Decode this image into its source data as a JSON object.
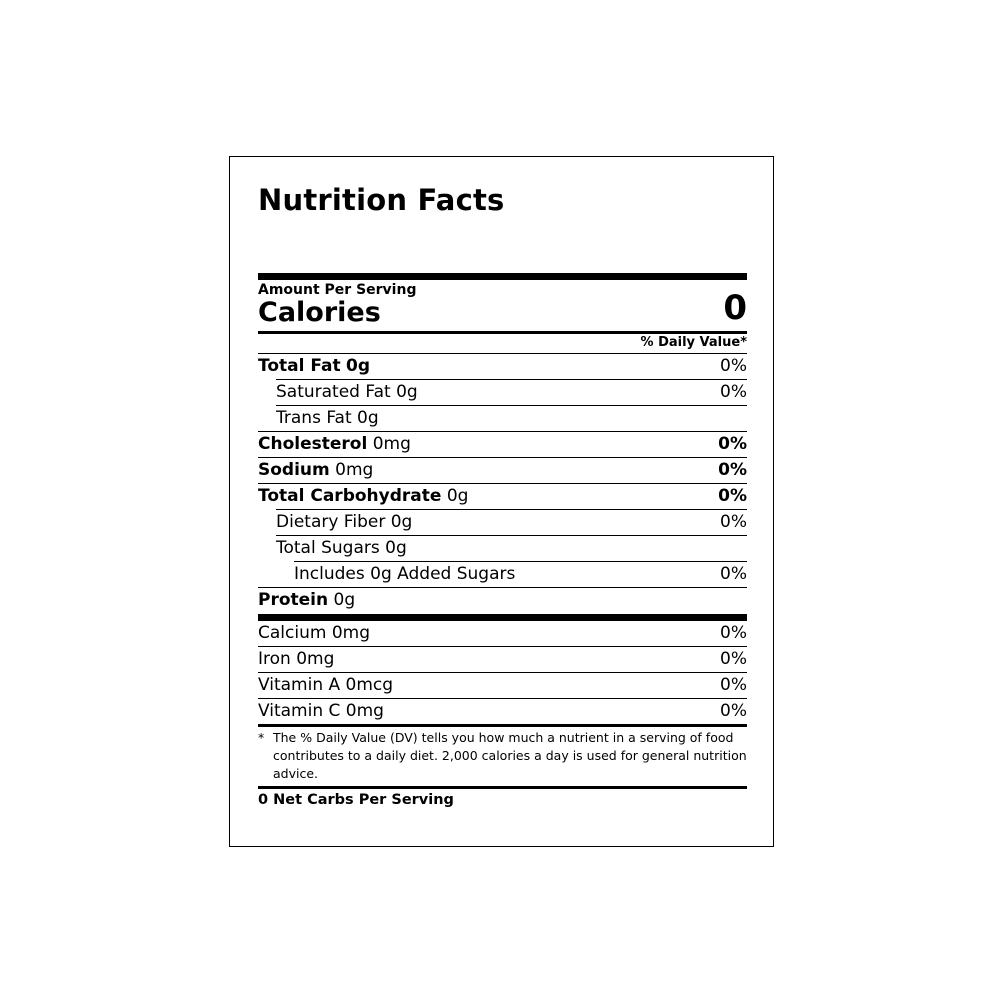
{
  "title": "Nutrition Facts",
  "amount_per_serving": "Amount Per Serving",
  "calories_label": "Calories",
  "calories_value": "0",
  "daily_value_header": "% Daily Value*",
  "nutrients": [
    {
      "name": "Total Fat",
      "amount": "0g",
      "dv": "0%",
      "name_bold": true,
      "amount_bold": true,
      "dv_bold": false,
      "indent": 0
    },
    {
      "name": "Saturated Fat",
      "amount": "0g",
      "dv": "0%",
      "name_bold": false,
      "amount_bold": false,
      "dv_bold": false,
      "indent": 1
    },
    {
      "name": "Trans Fat",
      "amount": "0g",
      "dv": "",
      "name_bold": false,
      "amount_bold": false,
      "dv_bold": false,
      "indent": 1
    },
    {
      "name": "Cholesterol",
      "amount": "0mg",
      "dv": "0%",
      "name_bold": true,
      "amount_bold": false,
      "dv_bold": true,
      "indent": 0
    },
    {
      "name": "Sodium",
      "amount": "0mg",
      "dv": "0%",
      "name_bold": true,
      "amount_bold": false,
      "dv_bold": true,
      "indent": 0
    },
    {
      "name": "Total Carbohydrate",
      "amount": "0g",
      "dv": "0%",
      "name_bold": true,
      "amount_bold": false,
      "dv_bold": true,
      "indent": 0
    },
    {
      "name": "Dietary Fiber",
      "amount": "0g",
      "dv": "0%",
      "name_bold": false,
      "amount_bold": false,
      "dv_bold": false,
      "indent": 1
    },
    {
      "name": "Total Sugars",
      "amount": "0g",
      "dv": "",
      "name_bold": false,
      "amount_bold": false,
      "dv_bold": false,
      "indent": 1
    },
    {
      "name": "Includes 0g Added Sugars",
      "amount": "",
      "dv": "0%",
      "name_bold": false,
      "amount_bold": false,
      "dv_bold": false,
      "indent": 2
    },
    {
      "name": "Protein",
      "amount": "0g",
      "dv": "",
      "name_bold": true,
      "amount_bold": false,
      "dv_bold": false,
      "indent": 0
    }
  ],
  "vitamins": [
    {
      "name": "Calcium 0mg",
      "dv": "0%"
    },
    {
      "name": "Iron 0mg",
      "dv": "0%"
    },
    {
      "name": "Vitamin A 0mcg",
      "dv": "0%"
    },
    {
      "name": "Vitamin C 0mg",
      "dv": "0%"
    }
  ],
  "footnote_marker": "*",
  "footnote": "The % Daily Value (DV) tells you how much a nutrient in a serving of food contributes to a daily diet. 2,000 calories a day is used for general nutrition advice.",
  "net_carbs": "0 Net Carbs Per Serving"
}
